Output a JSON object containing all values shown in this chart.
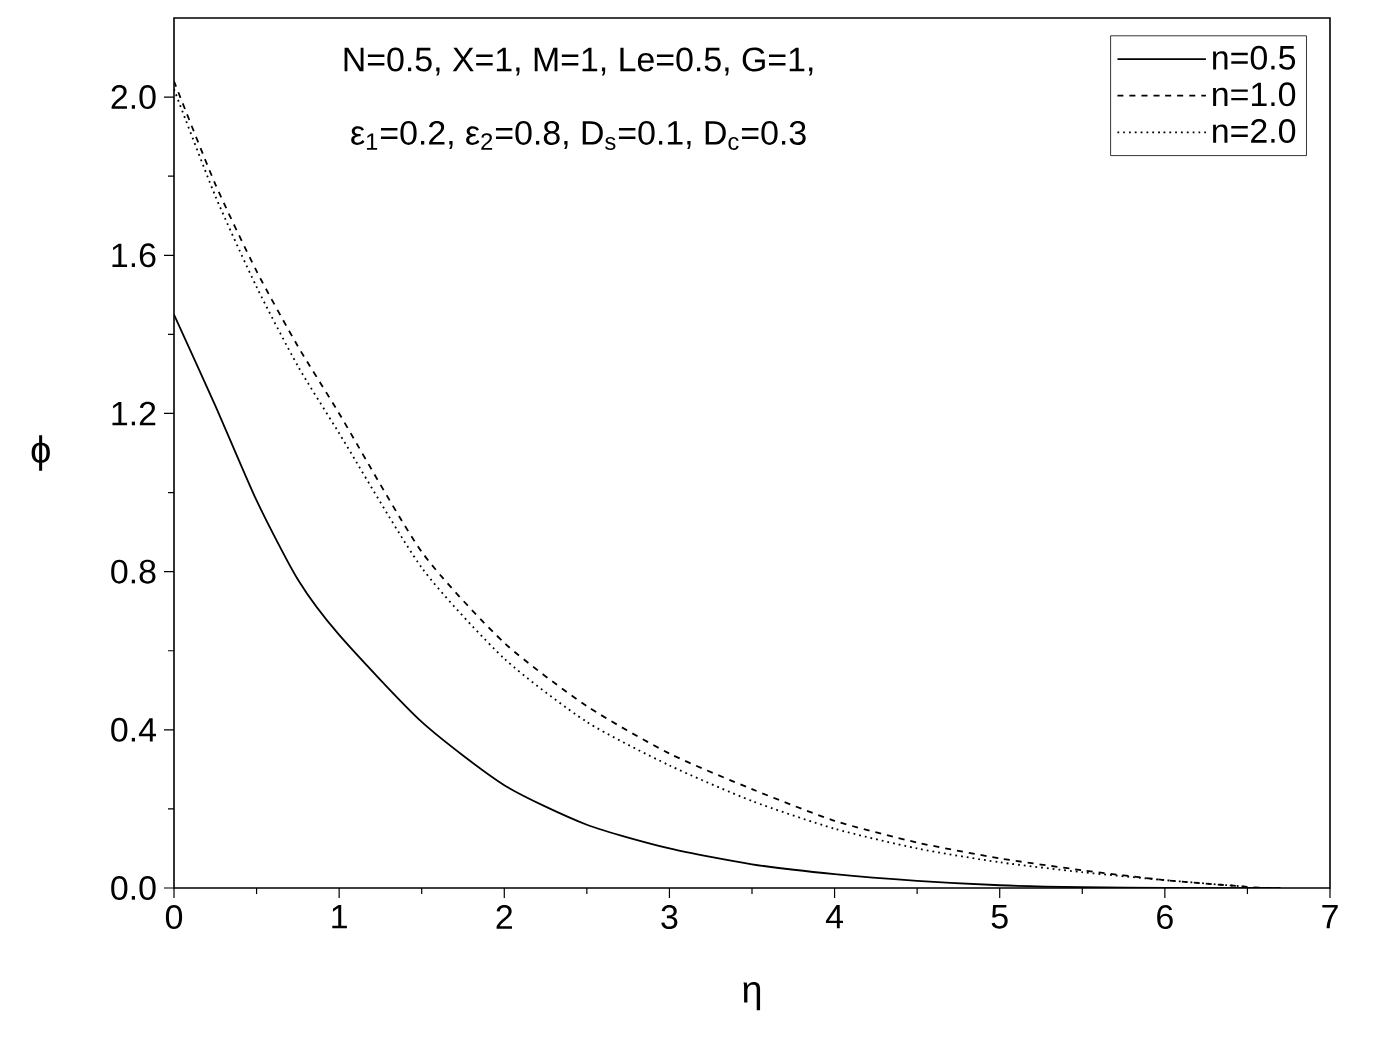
{
  "chart_data": {
    "type": "line",
    "xlabel": "η",
    "ylabel": "ϕ",
    "annotations": [
      "N=0.5, X=1, M=1, Le=0.5, G=1,",
      "ε$_{1}$=0.2, ε$_{2}$=0.8, D$_{s}$=0.1, D$_{c}$=0.3"
    ],
    "xlim": [
      0,
      7
    ],
    "xticks": [
      0,
      1,
      2,
      3,
      4,
      5,
      6,
      7
    ],
    "ylim": [
      0,
      2.2
    ],
    "yticks": [
      {
        "value": 0,
        "label": "0.0"
      },
      0.4,
      0.8,
      1.2,
      1.6,
      {
        "value": 2,
        "label": "2.0"
      }
    ],
    "legend": "top right",
    "grid": false,
    "marker": "none",
    "series": [
      {
        "name": "n=0.5",
        "color": "#000000",
        "line_style": "solid",
        "x": [
          0,
          0.25,
          0.5,
          0.75,
          1,
          1.5,
          2,
          2.5,
          3,
          3.5,
          4,
          4.5,
          5,
          5.5,
          6,
          6.7
        ],
        "values": [
          1.45,
          1.22,
          0.98,
          0.78,
          0.64,
          0.42,
          0.26,
          0.16,
          0.1,
          0.06,
          0.035,
          0.018,
          0.007,
          0.002,
          0,
          0
        ]
      },
      {
        "name": "n=1.0",
        "color": "#000000",
        "line_style": "dashed",
        "x": [
          0,
          0.25,
          0.5,
          0.75,
          1,
          1.5,
          2,
          2.5,
          3,
          3.5,
          4,
          4.5,
          5,
          5.5,
          6,
          6.5,
          6.6
        ],
        "values": [
          2.04,
          1.78,
          1.56,
          1.37,
          1.2,
          0.85,
          0.62,
          0.46,
          0.34,
          0.25,
          0.17,
          0.115,
          0.075,
          0.045,
          0.02,
          0.003,
          0
        ]
      },
      {
        "name": "n=2.0",
        "color": "#000000",
        "line_style": "dotted",
        "x": [
          0,
          0.25,
          0.5,
          0.75,
          1,
          1.5,
          2,
          2.5,
          3,
          3.5,
          4,
          4.5,
          5,
          5.5,
          6,
          6.5
        ],
        "values": [
          2.02,
          1.75,
          1.52,
          1.32,
          1.15,
          0.81,
          0.58,
          0.42,
          0.31,
          0.22,
          0.15,
          0.1,
          0.065,
          0.04,
          0.02,
          0.003
        ]
      }
    ]
  }
}
